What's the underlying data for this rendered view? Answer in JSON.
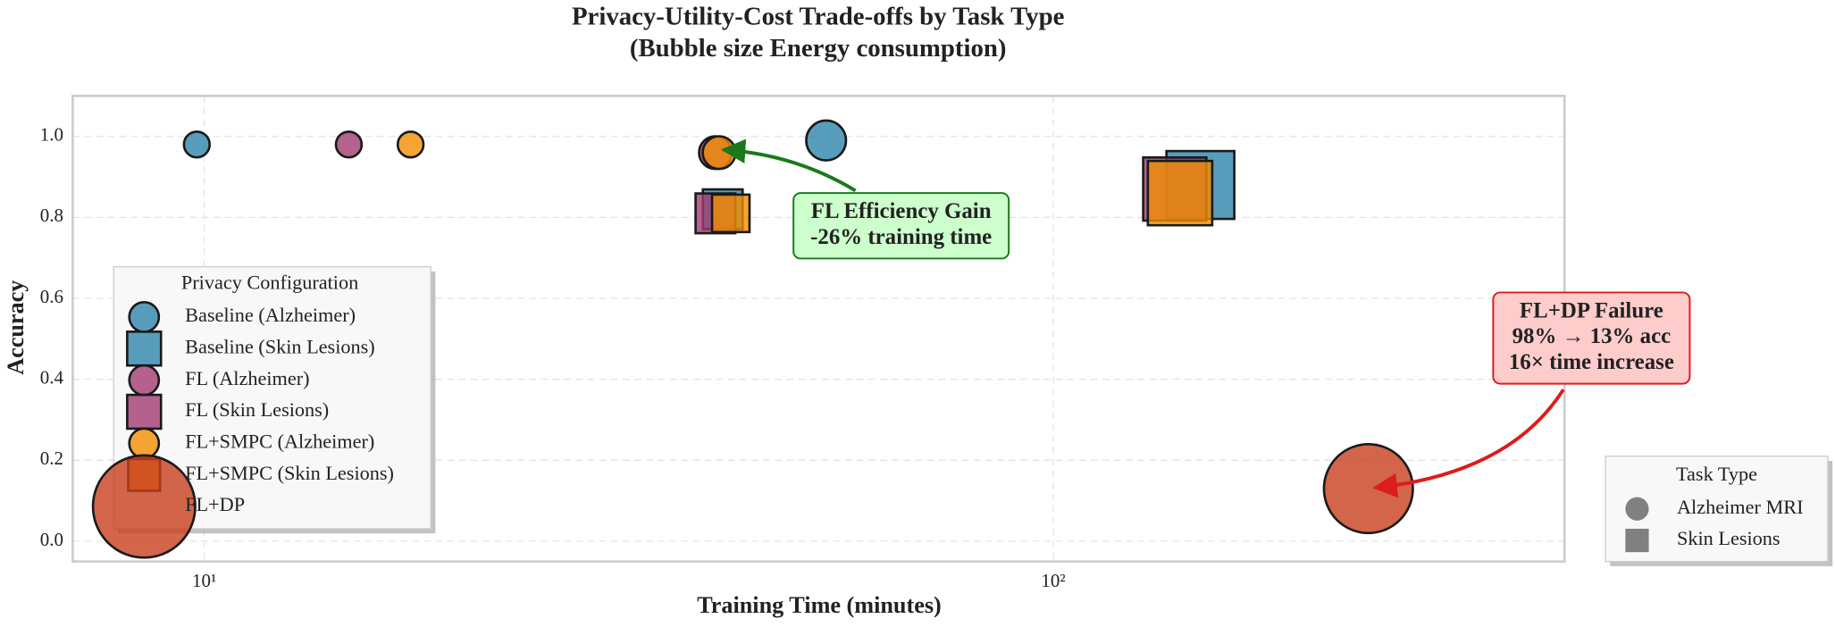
{
  "chart_data": {
    "type": "scatter",
    "title": "Privacy-Utility-Cost Trade-offs by Task Type",
    "subtitle": "(Bubble size     Energy consumption)",
    "x_label": "Training Time (minutes)",
    "y_label": "Accuracy",
    "xscale": "log",
    "xlim": [
      7,
      400
    ],
    "xticks": [
      {
        "value": 10,
        "label": "10¹"
      },
      {
        "value": 100,
        "label": "10²"
      }
    ],
    "ylim": [
      -0.05,
      1.1
    ],
    "yticks": [
      {
        "value": 0,
        "label": "0.0"
      },
      {
        "value": 0.2,
        "label": "0.2"
      },
      {
        "value": 0.4,
        "label": "0.4"
      },
      {
        "value": 0.6,
        "label": "0.6"
      },
      {
        "value": 0.8,
        "label": "0.8"
      },
      {
        "value": 1,
        "label": "1.0"
      }
    ],
    "grid": true,
    "series": [
      {
        "name": "Baseline (Alzheimer)",
        "color": "#2e86ab",
        "marker": "circle",
        "x": [
          9.8,
          54
        ],
        "values": [
          0.98,
          0.99
        ],
        "sizes": [
          121,
          289
        ]
      },
      {
        "name": "Baseline (Skin Lesions)",
        "color": "#2e86ab",
        "marker": "square",
        "x": [
          40.8,
          149
        ],
        "values": [
          0.82,
          0.88
        ],
        "sizes": [
          289,
          841
        ]
      },
      {
        "name": "FL (Alzheimer)",
        "color": "#a23b72",
        "marker": "circle",
        "x": [
          14.8,
          40
        ],
        "values": [
          0.98,
          0.96
        ],
        "sizes": [
          121,
          196
        ]
      },
      {
        "name": "FL (Skin Lesions)",
        "color": "#a23b72",
        "marker": "square",
        "x": [
          40,
          139
        ],
        "values": [
          0.81,
          0.87
        ],
        "sizes": [
          289,
          729
        ]
      },
      {
        "name": "FL+SMPC (Alzheimer)",
        "color": "#f18f01",
        "marker": "circle",
        "x": [
          17.5,
          40.4
        ],
        "values": [
          0.98,
          0.96
        ],
        "sizes": [
          121,
          196
        ]
      },
      {
        "name": "FL+SMPC (Skin Lesions)",
        "color": "#f18f01",
        "marker": "square",
        "x": [
          41.7,
          141
        ],
        "values": [
          0.81,
          0.86
        ],
        "sizes": [
          256,
          756
        ]
      },
      {
        "name": "FL+DP",
        "color": "#c73e1d",
        "marker": "circle",
        "x": [
          235
        ],
        "values": [
          0.13
        ],
        "sizes": [
          1444
        ]
      }
    ],
    "legend": {
      "title": "Privacy Configuration",
      "position": "lower left"
    },
    "task_legend": {
      "title": "Task Type",
      "position": "lower right",
      "entries": [
        {
          "label": "Alzheimer MRI",
          "marker": "circle"
        },
        {
          "label": "Skin Lesions",
          "marker": "square"
        }
      ]
    },
    "annotations": [
      {
        "lines": [
          "FL Efficiency Gain",
          "-26% training time"
        ],
        "color": "#1a7a1a",
        "fill": "#ccffcc"
      },
      {
        "lines": [
          "FL+DP Failure",
          "98% → 13% acc",
          "16× time increase"
        ],
        "color": "#dd1c1c",
        "fill": "#ffcccc"
      }
    ]
  }
}
